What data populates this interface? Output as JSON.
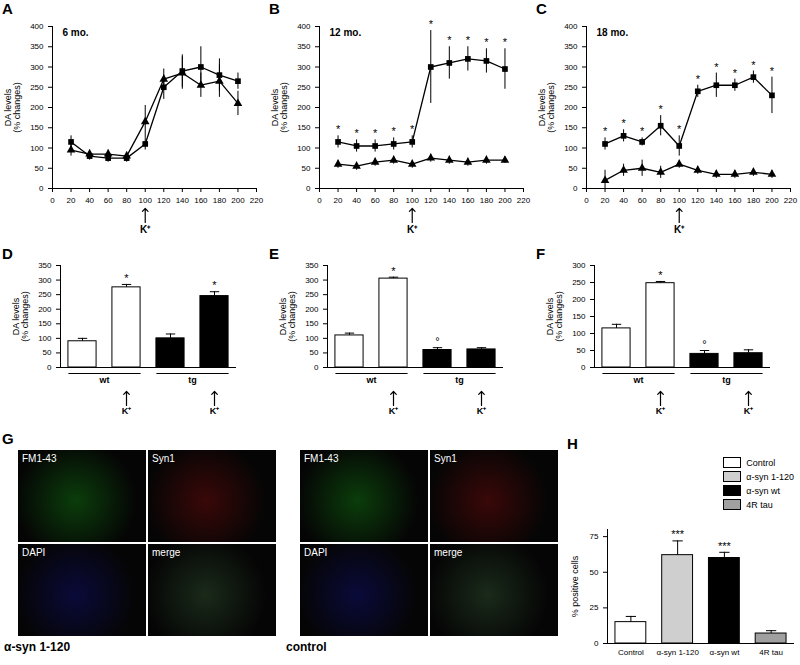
{
  "chart_data": [
    {
      "panel": "A",
      "type": "line",
      "title": "6 mo.",
      "ylabel": [
        "DA levels",
        "(% changes)"
      ],
      "x": [
        20,
        40,
        60,
        80,
        100,
        120,
        140,
        160,
        180,
        200
      ],
      "xlim": [
        0,
        220
      ],
      "xticks": [
        0,
        20,
        40,
        60,
        80,
        100,
        120,
        140,
        160,
        180,
        200,
        220
      ],
      "ylim": [
        0,
        400
      ],
      "yticks": [
        0,
        50,
        100,
        150,
        200,
        250,
        300,
        350,
        400
      ],
      "x_marker": {
        "x": 100,
        "text": "K⁺"
      },
      "series": [
        {
          "color": "#000000",
          "marker": "square",
          "values": [
            115,
            80,
            75,
            75,
            110,
            250,
            290,
            300,
            280,
            265
          ],
          "errors": [
            15,
            10,
            10,
            10,
            15,
            30,
            40,
            50,
            40,
            20
          ]
        },
        {
          "color": "#000000",
          "marker": "triangle",
          "values": [
            95,
            85,
            85,
            80,
            165,
            270,
            285,
            255,
            265,
            210
          ],
          "errors": [
            15,
            10,
            10,
            10,
            40,
            25,
            40,
            30,
            40,
            30
          ]
        }
      ]
    },
    {
      "panel": "B",
      "type": "line",
      "title": "12 mo.",
      "ylabel": [
        "DA levels",
        "(% changes)"
      ],
      "x": [
        20,
        40,
        60,
        80,
        100,
        120,
        140,
        160,
        180,
        200
      ],
      "xlim": [
        0,
        220
      ],
      "xticks": [
        0,
        20,
        40,
        60,
        80,
        100,
        120,
        140,
        160,
        180,
        200,
        220
      ],
      "ylim": [
        0,
        400
      ],
      "yticks": [
        0,
        50,
        100,
        150,
        200,
        250,
        300,
        350,
        400
      ],
      "x_marker": {
        "x": 100,
        "text": "K⁺"
      },
      "series": [
        {
          "color": "#000000",
          "marker": "square",
          "values": [
            115,
            105,
            105,
            110,
            115,
            300,
            310,
            320,
            315,
            295
          ],
          "errors": [
            15,
            15,
            15,
            15,
            15,
            90,
            40,
            30,
            30,
            50
          ],
          "annotations": [
            "*",
            "*",
            "*",
            "*",
            "*",
            "*",
            "*",
            "*",
            "*",
            "*"
          ]
        },
        {
          "color": "#000000",
          "marker": "triangle",
          "values": [
            60,
            55,
            65,
            70,
            60,
            75,
            70,
            65,
            70,
            70
          ],
          "errors": [
            10,
            10,
            10,
            10,
            10,
            10,
            10,
            10,
            10,
            8
          ]
        }
      ]
    },
    {
      "panel": "C",
      "type": "line",
      "title": "18 mo.",
      "ylabel": [
        "DA levels",
        "(% changes)"
      ],
      "x": [
        20,
        40,
        60,
        80,
        100,
        120,
        140,
        160,
        180,
        200
      ],
      "xlim": [
        0,
        220
      ],
      "xticks": [
        0,
        20,
        40,
        60,
        80,
        100,
        120,
        140,
        160,
        180,
        200,
        220
      ],
      "ylim": [
        0,
        400
      ],
      "yticks": [
        0,
        50,
        100,
        150,
        200,
        250,
        300,
        350,
        400
      ],
      "x_marker": {
        "x": 100,
        "text": "K⁺"
      },
      "series": [
        {
          "color": "#000000",
          "marker": "square",
          "values": [
            110,
            130,
            115,
            155,
            105,
            240,
            255,
            255,
            275,
            230
          ],
          "errors": [
            15,
            15,
            10,
            25,
            25,
            15,
            30,
            15,
            15,
            45
          ],
          "annotations": [
            "*",
            "*",
            "*",
            "*",
            "*",
            "*",
            "*",
            "*",
            "*",
            "*"
          ]
        },
        {
          "color": "#000000",
          "marker": "triangle",
          "values": [
            20,
            45,
            50,
            40,
            60,
            45,
            35,
            35,
            40,
            35
          ],
          "errors": [
            25,
            15,
            20,
            15,
            10,
            10,
            10,
            10,
            10,
            10
          ]
        }
      ]
    },
    {
      "panel": "D",
      "type": "bar",
      "ylabel": [
        "DA levels",
        "(% changes)"
      ],
      "categories": [
        null,
        "K⁺",
        null,
        "K⁺"
      ],
      "values": [
        90,
        275,
        100,
        245
      ],
      "errors": [
        10,
        10,
        15,
        15
      ],
      "colors": [
        "#ffffff",
        "#ffffff",
        "#000000",
        "#000000"
      ],
      "annotations": [
        null,
        "*",
        null,
        "*"
      ],
      "groups": [
        {
          "label": "wt",
          "from": 0,
          "to": 1
        },
        {
          "label": "tg",
          "from": 2,
          "to": 3
        }
      ],
      "ylim": [
        0,
        350
      ],
      "yticks": [
        0,
        50,
        100,
        150,
        200,
        250,
        300,
        350
      ]
    },
    {
      "panel": "E",
      "type": "bar",
      "ylabel": [
        "DA levels",
        "(% changes)"
      ],
      "categories": [
        null,
        "K⁺",
        null,
        "K⁺"
      ],
      "values": [
        110,
        305,
        60,
        62
      ],
      "errors": [
        8,
        5,
        8,
        6
      ],
      "colors": [
        "#ffffff",
        "#ffffff",
        "#000000",
        "#000000"
      ],
      "annotations": [
        null,
        "*",
        "°",
        null
      ],
      "groups": [
        {
          "label": "wt",
          "from": 0,
          "to": 1
        },
        {
          "label": "tg",
          "from": 2,
          "to": 3
        }
      ],
      "ylim": [
        0,
        350
      ],
      "yticks": [
        0,
        50,
        100,
        150,
        200,
        250,
        300,
        350
      ]
    },
    {
      "panel": "F",
      "type": "bar",
      "ylabel": [
        "DA levels",
        "(% changes)"
      ],
      "categories": [
        null,
        "K⁺",
        null,
        "K⁺"
      ],
      "values": [
        115,
        248,
        40,
        42
      ],
      "errors": [
        12,
        5,
        10,
        10
      ],
      "colors": [
        "#ffffff",
        "#ffffff",
        "#000000",
        "#000000"
      ],
      "annotations": [
        null,
        "*",
        "°",
        null
      ],
      "groups": [
        {
          "label": "wt",
          "from": 0,
          "to": 1
        },
        {
          "label": "tg",
          "from": 2,
          "to": 3
        }
      ],
      "ylim": [
        0,
        300
      ],
      "yticks": [
        0,
        50,
        100,
        150,
        200,
        250,
        300
      ]
    },
    {
      "panel": "H",
      "type": "bar",
      "ylabel": [
        "% positive cells"
      ],
      "categories": [
        "Control",
        "α-syn 1-120",
        "α-syn wt",
        "4R tau"
      ],
      "values": [
        15,
        62,
        60,
        7
      ],
      "errors": [
        4,
        10,
        4,
        2
      ],
      "colors": [
        "#ffffff",
        "#cfcfcf",
        "#000000",
        "#a0a0a0"
      ],
      "annotations": [
        null,
        "***",
        "***",
        null
      ],
      "legend": "top-right",
      "ylim": [
        0,
        80
      ],
      "yticks": [
        0,
        25,
        50,
        75
      ]
    }
  ],
  "images": {
    "panel": "G",
    "groups": [
      {
        "caption": "α-syn 1-120",
        "tiles": [
          "FM1-43",
          "Syn1",
          "DAPI",
          "merge"
        ]
      },
      {
        "caption": "control",
        "tiles": [
          "FM1-43",
          "Syn1",
          "DAPI",
          "merge"
        ]
      }
    ]
  }
}
